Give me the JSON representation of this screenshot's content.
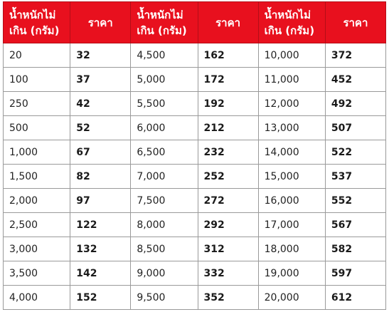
{
  "table": {
    "headers": [
      "น้ำหนักไม่เกิน (กรัม)",
      "ราคา",
      "น้ำหนักไม่เกิน (กรัม)",
      "ราคา",
      "น้ำหนักไม่เกิน (กรัม)",
      "ราคา"
    ],
    "rows": [
      [
        "20",
        "32",
        "4,500",
        "162",
        "10,000",
        "372"
      ],
      [
        "100",
        "37",
        "5,000",
        "172",
        "11,000",
        "452"
      ],
      [
        "250",
        "42",
        "5,500",
        "192",
        "12,000",
        "492"
      ],
      [
        "500",
        "52",
        "6,000",
        "212",
        "13,000",
        "507"
      ],
      [
        "1,000",
        "67",
        "6,500",
        "232",
        "14,000",
        "522"
      ],
      [
        "1,500",
        "82",
        "7,000",
        "252",
        "15,000",
        "537"
      ],
      [
        "2,000",
        "97",
        "7,500",
        "272",
        "16,000",
        "552"
      ],
      [
        "2,500",
        "122",
        "8,000",
        "292",
        "17,000",
        "567"
      ],
      [
        "3,000",
        "132",
        "8,500",
        "312",
        "18,000",
        "582"
      ],
      [
        "3,500",
        "142",
        "9,000",
        "332",
        "19,000",
        "597"
      ],
      [
        "4,000",
        "152",
        "9,500",
        "352",
        "20,000",
        "612"
      ]
    ]
  },
  "colors": {
    "header_bg": "#e8101e",
    "header_text": "#ffffff",
    "border": "#9a9a9a"
  }
}
